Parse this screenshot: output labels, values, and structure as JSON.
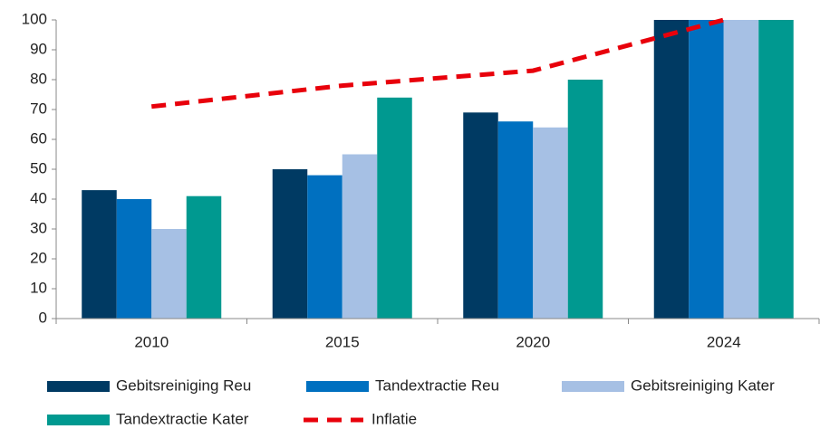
{
  "chart_data": {
    "type": "bar",
    "categories": [
      "2010",
      "2015",
      "2020",
      "2024"
    ],
    "series": [
      {
        "name": "Gebitsreiniging Reu",
        "color": "#003a63",
        "values": [
          43,
          50,
          69,
          100
        ]
      },
      {
        "name": "Tandextractie Reu",
        "color": "#0070c0",
        "values": [
          40,
          48,
          66,
          100
        ]
      },
      {
        "name": "Gebitsreiniging Kater",
        "color": "#a6c0e4",
        "values": [
          30,
          55,
          64,
          100
        ]
      },
      {
        "name": "Tandextractie Kater",
        "color": "#009990",
        "values": [
          41,
          74,
          80,
          100
        ]
      },
      {
        "name": "Inflatie",
        "color": "#e8000b",
        "type": "line",
        "dashed": true,
        "values": [
          71,
          78,
          83,
          100
        ]
      }
    ],
    "ylim": [
      0,
      100
    ],
    "yticks": [
      0,
      10,
      20,
      30,
      40,
      50,
      60,
      70,
      80,
      90,
      100
    ],
    "legend": "bottom"
  }
}
